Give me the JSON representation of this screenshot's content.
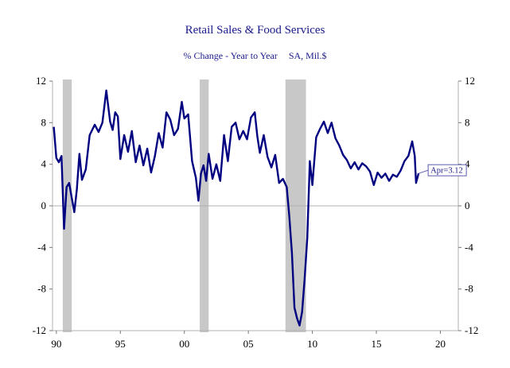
{
  "chart_data": {
    "type": "line",
    "title": "Retail Sales & Food Services",
    "subtitle_parts": [
      "% Change - Year to Year",
      "SA, Mil.$"
    ],
    "xlabel": "",
    "ylabel": "",
    "xlim": [
      1989.7,
      2021.4
    ],
    "ylim": [
      -12,
      12
    ],
    "y_ticks": [
      12,
      8,
      4,
      0,
      -4,
      -8,
      -12
    ],
    "x_ticks": [
      {
        "value": 1990,
        "label": "90"
      },
      {
        "value": 1995,
        "label": "95"
      },
      {
        "value": 2000,
        "label": "00"
      },
      {
        "value": 2005,
        "label": "05"
      },
      {
        "value": 2010,
        "label": "10"
      },
      {
        "value": 2015,
        "label": "15"
      },
      {
        "value": 2020,
        "label": "20"
      }
    ],
    "recessions": [
      [
        1990.5,
        1991.2
      ],
      [
        2001.2,
        2001.9
      ],
      [
        2007.9,
        2009.5
      ]
    ],
    "annotation": {
      "text": "Apr=3.12",
      "x": 2018.3,
      "y": 3.12
    },
    "series": [
      {
        "color": "#000080",
        "x": [
          1989.8,
          1990.0,
          1990.2,
          1990.4,
          1990.6,
          1990.8,
          1991.0,
          1991.2,
          1991.4,
          1991.6,
          1991.8,
          1992.0,
          1992.3,
          1992.6,
          1993.0,
          1993.3,
          1993.6,
          1993.9,
          1994.2,
          1994.4,
          1994.6,
          1994.8,
          1995.0,
          1995.3,
          1995.6,
          1995.9,
          1996.2,
          1996.5,
          1996.8,
          1997.1,
          1997.4,
          1997.7,
          1998.0,
          1998.3,
          1998.6,
          1998.9,
          1999.2,
          1999.5,
          1999.8,
          2000.0,
          2000.3,
          2000.6,
          2000.9,
          2001.1,
          2001.3,
          2001.5,
          2001.7,
          2001.9,
          2002.2,
          2002.5,
          2002.8,
          2003.1,
          2003.4,
          2003.7,
          2004.0,
          2004.3,
          2004.6,
          2004.9,
          2005.2,
          2005.5,
          2005.7,
          2005.9,
          2006.2,
          2006.5,
          2006.8,
          2007.1,
          2007.4,
          2007.7,
          2008.0,
          2008.2,
          2008.4,
          2008.6,
          2008.8,
          2009.0,
          2009.2,
          2009.4,
          2009.6,
          2009.8,
          2010.0,
          2010.3,
          2010.6,
          2010.9,
          2011.2,
          2011.5,
          2011.8,
          2012.1,
          2012.4,
          2012.7,
          2013.0,
          2013.3,
          2013.6,
          2013.9,
          2014.2,
          2014.5,
          2014.8,
          2015.1,
          2015.4,
          2015.7,
          2016.0,
          2016.3,
          2016.6,
          2016.9,
          2017.2,
          2017.5,
          2017.8,
          2018.0,
          2018.1,
          2018.3
        ],
        "y": [
          7.6,
          4.6,
          4.2,
          4.8,
          -2.2,
          1.8,
          2.2,
          0.8,
          -0.6,
          1.6,
          5.0,
          2.5,
          3.5,
          6.8,
          7.8,
          7.1,
          8.0,
          11.1,
          8.1,
          7.3,
          9.0,
          8.6,
          4.5,
          6.8,
          5.2,
          7.2,
          4.2,
          5.8,
          3.9,
          5.5,
          3.2,
          4.8,
          7.0,
          5.6,
          9.0,
          8.3,
          6.8,
          7.4,
          10.0,
          8.4,
          8.8,
          4.3,
          2.7,
          0.5,
          3.1,
          3.9,
          2.4,
          5.0,
          2.6,
          4.0,
          2.4,
          6.8,
          4.3,
          7.6,
          8.0,
          6.4,
          7.2,
          6.4,
          8.5,
          9.0,
          6.7,
          5.1,
          6.8,
          4.7,
          3.7,
          4.9,
          2.2,
          2.6,
          1.8,
          -1.0,
          -4.5,
          -9.8,
          -10.8,
          -11.5,
          -10.2,
          -7.0,
          -3.1,
          4.3,
          2.0,
          6.6,
          7.4,
          8.1,
          7.0,
          8.0,
          6.5,
          5.8,
          4.9,
          4.4,
          3.6,
          4.2,
          3.5,
          4.1,
          3.8,
          3.3,
          2.0,
          3.2,
          2.7,
          3.1,
          2.4,
          3.0,
          2.8,
          3.4,
          4.3,
          4.8,
          6.2,
          4.8,
          2.2,
          3.12
        ]
      }
    ]
  }
}
